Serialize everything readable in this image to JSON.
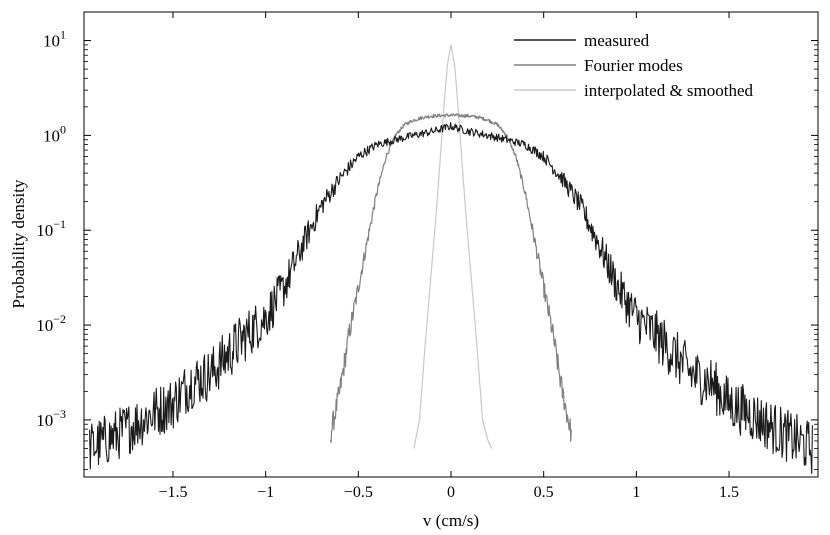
{
  "chart_data": {
    "type": "line",
    "title": "",
    "xlabel": "v (cm/s)",
    "ylabel": "Probability density",
    "xlim": [
      -1.98,
      1.98
    ],
    "ylim": [
      0.00025,
      20
    ],
    "yscale": "log",
    "x_ticks": [
      -1.5,
      -1,
      -0.5,
      0,
      0.5,
      1,
      1.5
    ],
    "x_tick_labels": [
      "−1.5",
      "−1",
      "−0.5",
      "0",
      "0.5",
      "1",
      "1.5"
    ],
    "y_ticks": [
      {
        "value": 0.001,
        "base": "10",
        "exp": "−3"
      },
      {
        "value": 0.01,
        "base": "10",
        "exp": "−2"
      },
      {
        "value": 0.1,
        "base": "10",
        "exp": "−1"
      },
      {
        "value": 1,
        "base": "10",
        "exp": "0"
      },
      {
        "value": 10,
        "base": "10",
        "exp": "1"
      }
    ],
    "legend_position": "top-right",
    "series": [
      {
        "name": "measured",
        "color": "#1a1a1a",
        "x": [
          -1.95,
          -1.8,
          -1.6,
          -1.5,
          -1.4,
          -1.3,
          -1.2,
          -1.1,
          -1.0,
          -0.9,
          -0.8,
          -0.7,
          -0.6,
          -0.5,
          -0.4,
          -0.3,
          -0.2,
          -0.1,
          0.0,
          0.1,
          0.2,
          0.3,
          0.4,
          0.5,
          0.6,
          0.7,
          0.8,
          0.9,
          1.0,
          1.1,
          1.2,
          1.3,
          1.4,
          1.5,
          1.6,
          1.8,
          1.95
        ],
        "y": [
          0.0005,
          0.0007,
          0.0012,
          0.0015,
          0.0025,
          0.003,
          0.005,
          0.008,
          0.012,
          0.025,
          0.07,
          0.18,
          0.35,
          0.6,
          0.8,
          0.9,
          1.0,
          1.1,
          1.25,
          1.1,
          1.0,
          0.9,
          0.8,
          0.6,
          0.35,
          0.18,
          0.07,
          0.025,
          0.012,
          0.008,
          0.005,
          0.003,
          0.0025,
          0.0015,
          0.0012,
          0.0007,
          0.0005
        ]
      },
      {
        "name": "Fourier modes",
        "color": "#808080",
        "x": [
          -0.65,
          -0.6,
          -0.55,
          -0.5,
          -0.45,
          -0.4,
          -0.35,
          -0.3,
          -0.25,
          -0.2,
          -0.15,
          -0.1,
          -0.05,
          0.0,
          0.05,
          0.1,
          0.15,
          0.2,
          0.25,
          0.3,
          0.35,
          0.4,
          0.45,
          0.5,
          0.55,
          0.6,
          0.65
        ],
        "y": [
          0.0007,
          0.002,
          0.008,
          0.025,
          0.08,
          0.25,
          0.6,
          1.0,
          1.3,
          1.45,
          1.55,
          1.6,
          1.62,
          1.63,
          1.62,
          1.6,
          1.55,
          1.45,
          1.3,
          1.0,
          0.6,
          0.25,
          0.08,
          0.025,
          0.008,
          0.002,
          0.0007
        ]
      },
      {
        "name": "interpolated & smoothed",
        "color": "#c8c8c8",
        "x": [
          -0.2,
          -0.17,
          -0.14,
          -0.11,
          -0.08,
          -0.06,
          -0.04,
          -0.02,
          0.0,
          0.02,
          0.04,
          0.06,
          0.08,
          0.11,
          0.14,
          0.17,
          0.2,
          0.22
        ],
        "y": [
          0.0005,
          0.001,
          0.006,
          0.03,
          0.15,
          0.5,
          1.8,
          5.5,
          9.0,
          5.5,
          1.8,
          0.5,
          0.15,
          0.03,
          0.006,
          0.001,
          0.0006,
          0.0005
        ]
      }
    ]
  }
}
